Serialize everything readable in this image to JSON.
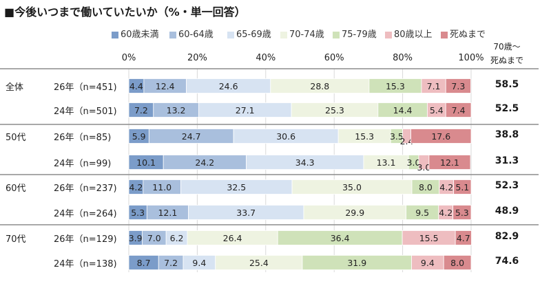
{
  "title": "■今後いつまで働いていたいか（%・単一回答）",
  "right_header": [
    "70歳～",
    "死ぬまで"
  ],
  "chart_data": {
    "type": "bar",
    "orientation": "horizontal",
    "stacked": true,
    "title": "■今後いつまで働いていたいか（%・単一回答）",
    "xlim": [
      0,
      100
    ],
    "x_ticks": [
      "0%",
      "20%",
      "40%",
      "60%",
      "80%",
      "100%"
    ],
    "legend_position": "top",
    "series": [
      {
        "name": "60歳未満",
        "color": "#7b9cc9"
      },
      {
        "name": "60-64歳",
        "color": "#a9bfdd"
      },
      {
        "name": "65-69歳",
        "color": "#d7e3f2"
      },
      {
        "name": "70-74歳",
        "color": "#eef3e1"
      },
      {
        "name": "75-79歳",
        "color": "#cfe2b9"
      },
      {
        "name": "80歳以上",
        "color": "#eebdc0"
      },
      {
        "name": "死ぬまで",
        "color": "#d98a8e"
      }
    ],
    "rows": [
      {
        "group": "全体",
        "label": "26年（n=451)",
        "values": [
          4.4,
          12.4,
          24.6,
          28.8,
          15.3,
          7.1,
          7.3
        ],
        "total": "58.5"
      },
      {
        "group": "",
        "label": "24年（n=501)",
        "values": [
          7.2,
          13.2,
          27.1,
          25.3,
          14.4,
          5.4,
          7.4
        ],
        "total": "52.5"
      },
      {
        "group": "50代",
        "label": "26年（n=85)",
        "values": [
          5.9,
          24.7,
          30.6,
          15.3,
          3.5,
          2.4,
          17.6
        ],
        "total": "38.8"
      },
      {
        "group": "",
        "label": "24年（n=99)",
        "values": [
          10.1,
          24.2,
          34.3,
          13.1,
          3.0,
          3.0,
          12.1
        ],
        "total": "31.3"
      },
      {
        "group": "60代",
        "label": "26年（n=237)",
        "values": [
          4.2,
          11.0,
          32.5,
          35.0,
          8.0,
          4.2,
          5.1
        ],
        "total": "52.3"
      },
      {
        "group": "",
        "label": "24年（n=264)",
        "values": [
          5.3,
          12.1,
          33.7,
          29.9,
          9.5,
          4.2,
          5.3
        ],
        "total": "48.9"
      },
      {
        "group": "70代",
        "label": "26年（n=129)",
        "values": [
          3.9,
          7.0,
          6.2,
          26.4,
          36.4,
          15.5,
          4.7
        ],
        "total": "82.9"
      },
      {
        "group": "",
        "label": "24年（n=138)",
        "values": [
          8.7,
          7.2,
          9.4,
          25.4,
          31.9,
          9.4,
          8.0
        ],
        "total": "74.6"
      }
    ]
  }
}
